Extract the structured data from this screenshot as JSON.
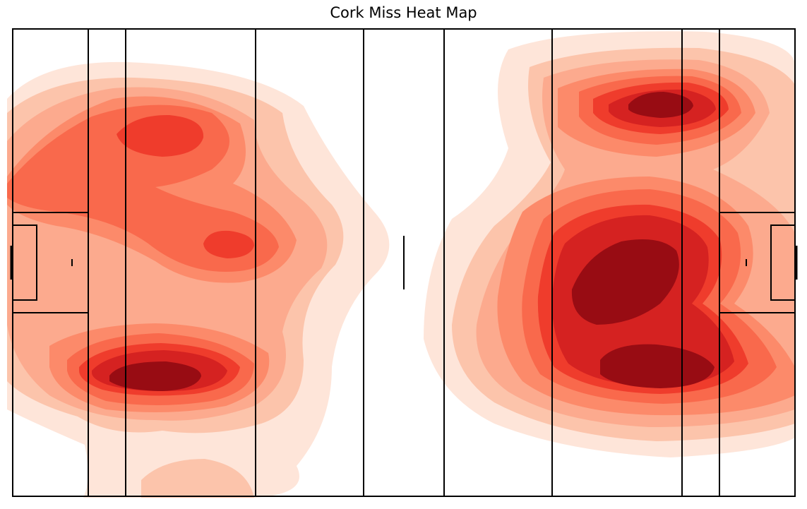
{
  "chart_data": {
    "type": "heatmap",
    "title": "Cork Miss Heat Map",
    "xlabel": "",
    "ylabel": "",
    "xlim": [
      0,
      145
    ],
    "ylim": [
      0,
      90
    ],
    "grid": false,
    "legend": "none",
    "colormap": "Reds",
    "colors": [
      "#fee5d9",
      "#fcc4ab",
      "#fcaa8e",
      "#fc8a6a",
      "#f9694c",
      "#ef3c2c",
      "#d52221",
      "#b81419",
      "#980c13"
    ],
    "hotspots": [
      {
        "name": "left-upper-wing",
        "x": 27,
        "y": 70,
        "level": 5
      },
      {
        "name": "left-center",
        "x": 40,
        "y": 48,
        "level": 5
      },
      {
        "name": "left-lower",
        "x": 28,
        "y": 23,
        "level": 8
      },
      {
        "name": "left-bottom-edge",
        "x": 34,
        "y": 3,
        "level": 1
      },
      {
        "name": "right-upper",
        "x": 121,
        "y": 75,
        "level": 8
      },
      {
        "name": "right-center",
        "x": 116,
        "y": 45,
        "level": 8
      },
      {
        "name": "right-lower",
        "x": 120,
        "y": 24,
        "level": 8
      }
    ]
  }
}
